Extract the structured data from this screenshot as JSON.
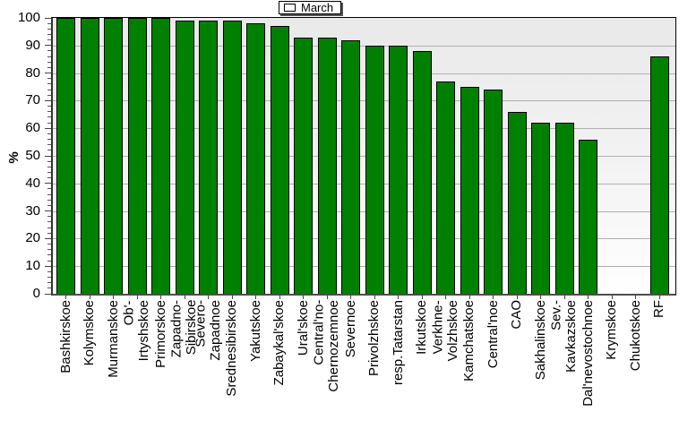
{
  "legend": {
    "label": "March"
  },
  "y_axis": {
    "title": "%",
    "tick_labels": [
      "0",
      "10",
      "20",
      "30",
      "40",
      "50",
      "60",
      "70",
      "80",
      "90",
      "100"
    ],
    "major_step": 10,
    "minor_step": 2
  },
  "x_axis": {
    "labels": [
      "Bashkirskoe",
      "Kolymskoe",
      "Murmanskoe",
      "Ob'-\nIrtyshskoe",
      "Primorskoe",
      "Zapadno-\nSibirskoe",
      "Severo-\nZapadnoe",
      "Srednesibirskoe",
      "Yakutskoe",
      "Zabaykal'skoe",
      "Ural'skoe",
      "Central'no-\nChernozemnoe",
      "Severnoe",
      "Privolzhskoe",
      "resp.Tatarstan",
      "Irkutskoe",
      "Verkhne-\nVolzhskoe",
      "Kamchatskoe",
      "Central'noe",
      "CAO",
      "Sakhalinskoe",
      "Sev.-\nKavkazskoe",
      "Dal'nevostochnoe",
      "Krymskoe",
      "Chukotskoe",
      "RF"
    ]
  },
  "chart_data": {
    "type": "bar",
    "title": "",
    "xlabel": "",
    "ylabel": "%",
    "ylim": [
      0,
      100
    ],
    "grid": true,
    "legend_position": "top-center",
    "legend_entries": [
      "March"
    ],
    "categories": [
      "Bashkirskoe",
      "Kolymskoe",
      "Murmanskoe",
      "Ob'-Irtyshskoe",
      "Primorskoe",
      "Zapadno-Sibirskoe",
      "Severo-Zapadnoe",
      "Srednesibirskoe",
      "Yakutskoe",
      "Zabaykal'skoe",
      "Ural'skoe",
      "Central'no-Chernozemnoe",
      "Severnoe",
      "Privolzhskoe",
      "resp.Tatarstan",
      "Irkutskoe",
      "Verkhne-Volzhskoe",
      "Kamchatskoe",
      "Central'noe",
      "CAO",
      "Sakhalinskoe",
      "Sev.-Kavkazskoe",
      "Dal'nevostochnoe",
      "Krymskoe",
      "Chukotskoe",
      "RF"
    ],
    "series": [
      {
        "name": "March",
        "values": [
          100,
          100,
          100,
          100,
          100,
          99,
          99,
          99,
          98,
          97,
          93,
          93,
          92,
          90,
          90,
          88,
          77,
          75,
          74,
          66,
          62,
          62,
          56,
          0,
          0,
          86
        ]
      }
    ]
  },
  "colors": {
    "bar_fill": "#008000",
    "bar_border": "#000000",
    "plot_bg_top": "#e9e9e9",
    "plot_bg_mid": "#f3f3f3",
    "plot_bg_bottom": "#ffffff",
    "gridline": "#b0b0b0",
    "axis": "#444444",
    "legend_shadow": "#555555"
  }
}
